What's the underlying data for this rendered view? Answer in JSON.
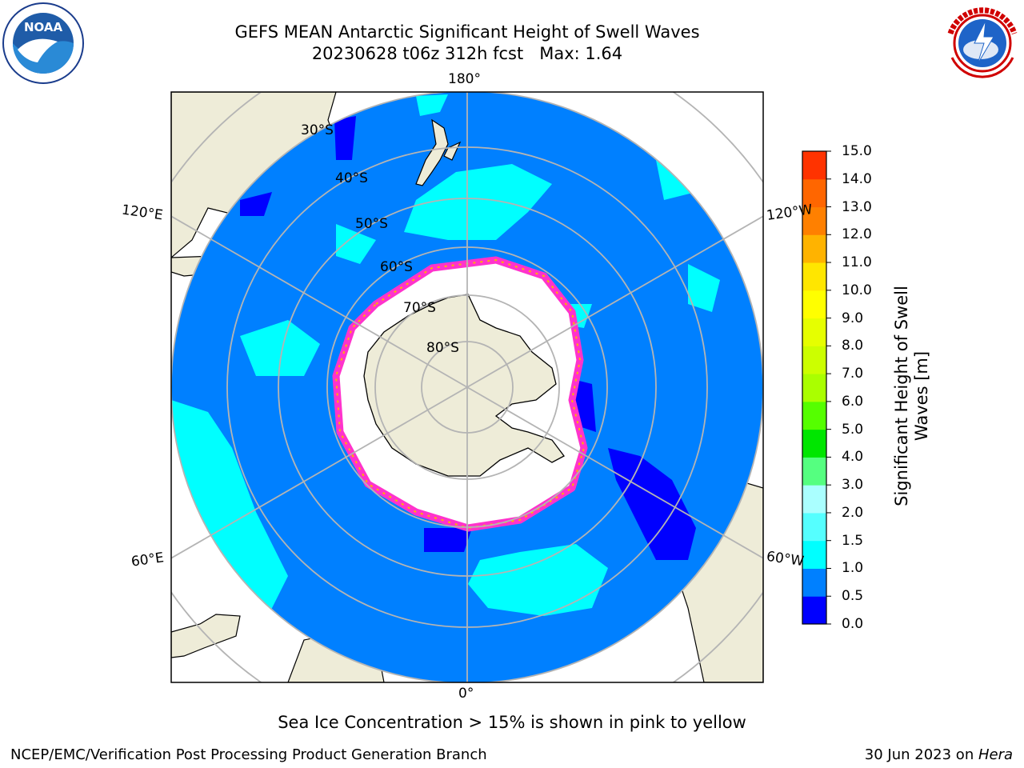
{
  "title": {
    "line1": "GEFS MEAN Antarctic Significant Height of Swell Waves",
    "line2": "20230628 t06z 312h fcst   Max: 1.64"
  },
  "logos": {
    "left": "noaa-logo",
    "right": "national-weather-service-logo"
  },
  "map": {
    "projection": "south-polar-stereographic",
    "longitude_labels": {
      "top": "180°",
      "bottom": "0°",
      "upper_left": "120°E",
      "upper_right": "120°W",
      "lower_left": "60°E",
      "lower_right": "60°W"
    },
    "latitude_labels": [
      "30°S",
      "40°S",
      "50°S",
      "60°S",
      "70°S",
      "80°S"
    ],
    "colors": {
      "land": "#eeecd8",
      "ocean_main": "#0080ff",
      "ocean_low": "#0000ff",
      "ocean_cyan": "#00ffff",
      "ice_pink": "#ff33cc",
      "ice_white": "#ffffff",
      "grid": "#b4b4b4"
    }
  },
  "colorbar": {
    "label_line1": "Significant Height of Swell",
    "label_line2": "Waves [m]",
    "ticks": [
      "15.0",
      "14.0",
      "13.0",
      "12.0",
      "11.0",
      "10.0",
      "9.0",
      "8.0",
      "7.0",
      "6.0",
      "5.0",
      "4.0",
      "3.0",
      "2.0",
      "1.5",
      "1.0",
      "0.5",
      "0.0"
    ],
    "colors": [
      "#0000ff",
      "#0080ff",
      "#00ffff",
      "#55ffff",
      "#aaffff",
      "#55ff80",
      "#00e600",
      "#55ff00",
      "#aaff00",
      "#ccff00",
      "#e6ff00",
      "#ffff00",
      "#ffe600",
      "#ffb300",
      "#ff8000",
      "#ff6600",
      "#ff3300"
    ]
  },
  "note": "Sea Ice Concentration > 15% is shown in pink to yellow",
  "footer": {
    "left": "NCEP/EMC/Verification Post Processing Product Generation Branch",
    "date": "30 Jun 2023 on ",
    "machine": "Hera"
  }
}
